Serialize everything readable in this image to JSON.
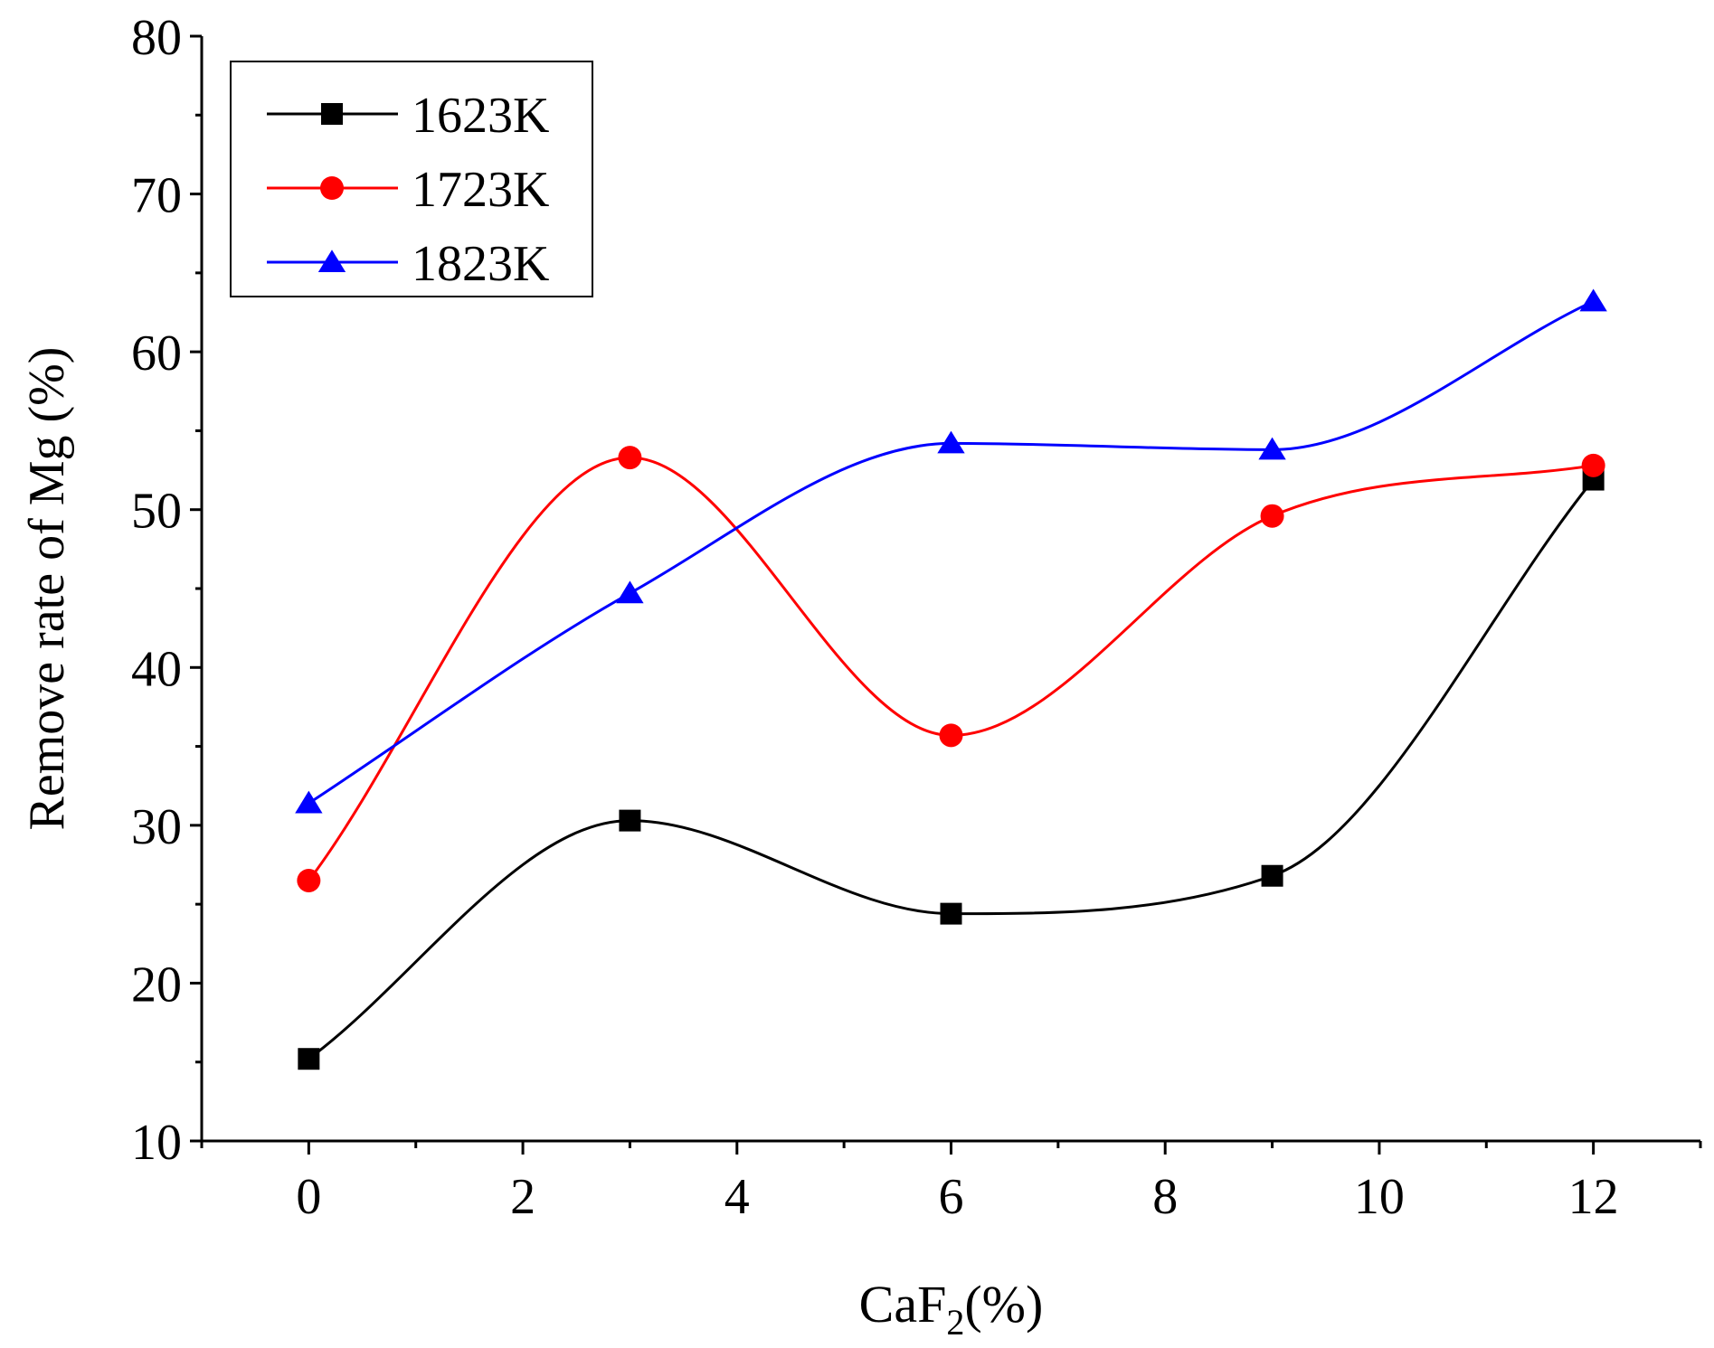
{
  "chart_data": {
    "type": "line",
    "title": "",
    "xlabel": "CaF",
    "xlabel_subscript": "2",
    "xlabel_suffix": "(%)",
    "ylabel": "Remove rate of Mg (%)",
    "xlim": [
      -1,
      13
    ],
    "ylim": [
      10,
      80
    ],
    "x_ticks": [
      0,
      2,
      4,
      6,
      8,
      10,
      12
    ],
    "x_tick_labels": [
      "0",
      "2",
      "4",
      "6",
      "8",
      "10",
      "12"
    ],
    "y_ticks": [
      10,
      20,
      30,
      40,
      50,
      60,
      70,
      80
    ],
    "y_tick_labels": [
      "10",
      "20",
      "30",
      "40",
      "50",
      "60",
      "70",
      "80"
    ],
    "legend_position": "top-left",
    "grid": false,
    "x": [
      0,
      3,
      6,
      9,
      12
    ],
    "series": [
      {
        "name": "1623K",
        "marker": "square",
        "color": "#000000",
        "values": [
          15.2,
          30.3,
          24.4,
          26.8,
          51.9
        ]
      },
      {
        "name": "1723K",
        "marker": "circle",
        "color": "#ff0000",
        "values": [
          26.5,
          53.3,
          35.7,
          49.6,
          52.8
        ]
      },
      {
        "name": "1823K",
        "marker": "triangle",
        "color": "#0000ff",
        "values": [
          31.4,
          44.7,
          54.2,
          53.8,
          63.2
        ]
      }
    ]
  }
}
